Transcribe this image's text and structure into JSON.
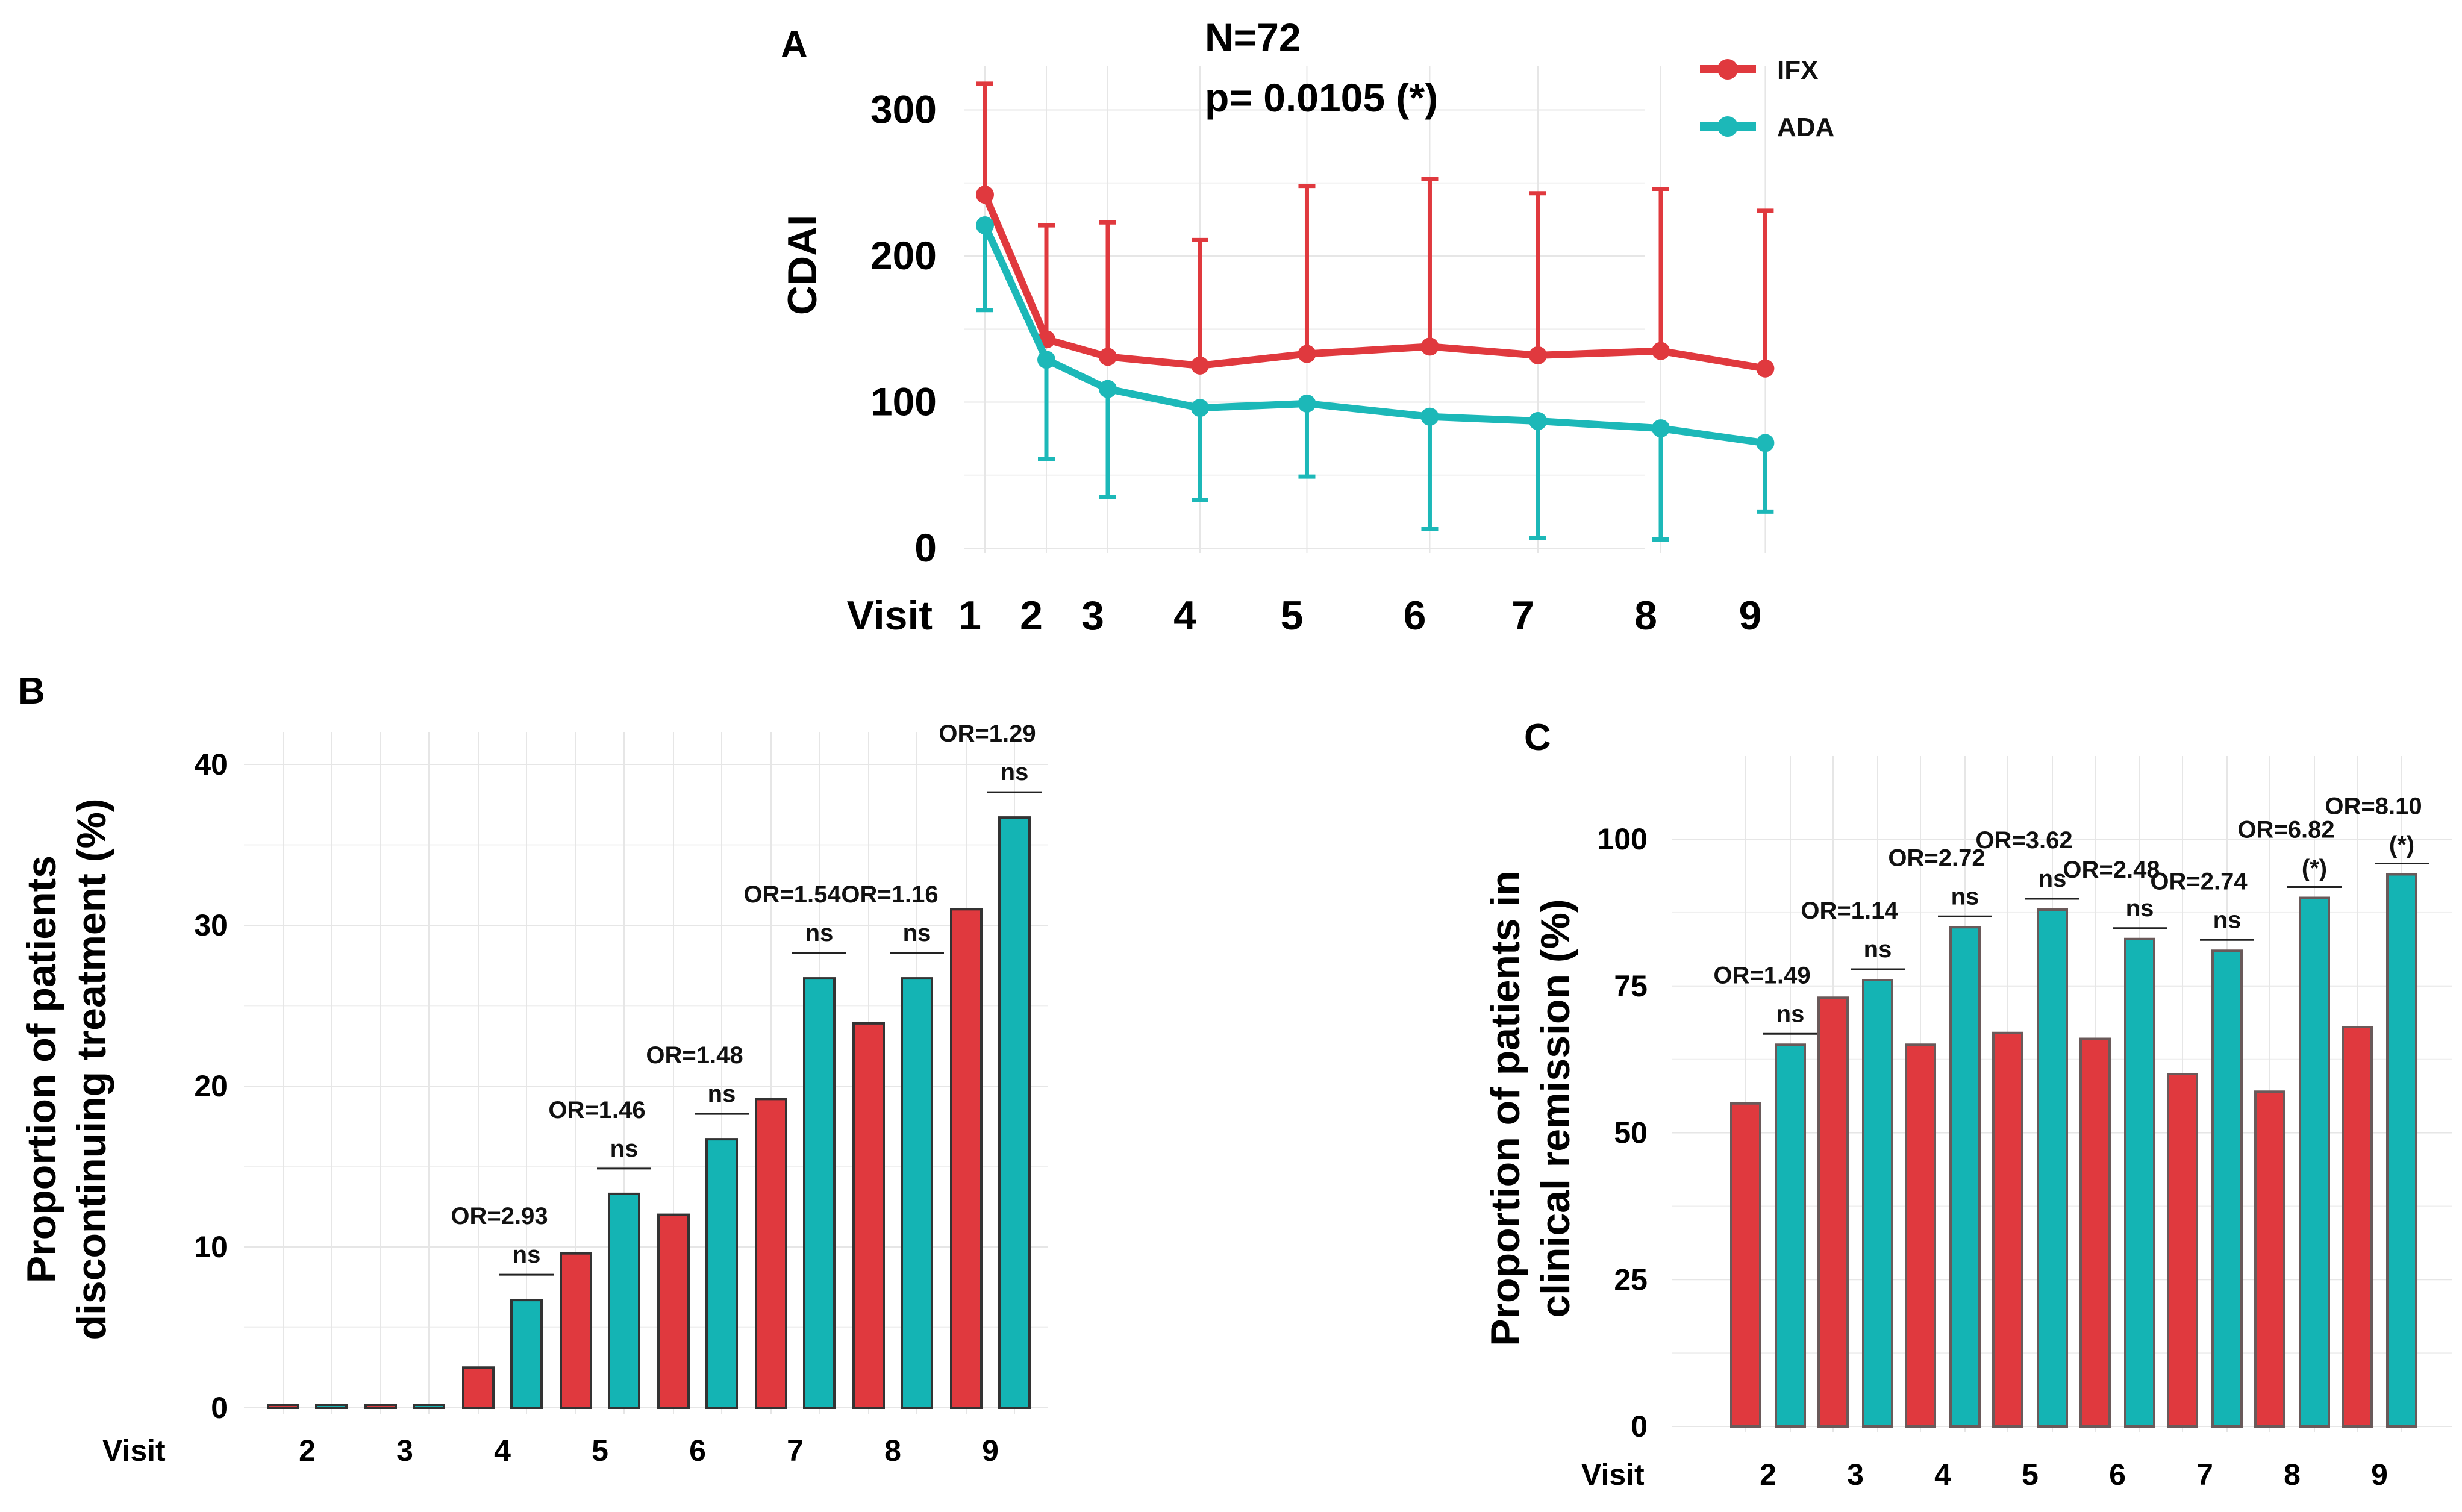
{
  "colors": {
    "ifx": "#e0393e",
    "ada": "#1cb8b8",
    "ifx_bar": "#e0393e",
    "ada_bar": "#14b4b4",
    "bar_edge": "#333333"
  },
  "legend": {
    "items": [
      {
        "label": "IFX",
        "series": "ifx"
      },
      {
        "label": "ADA",
        "series": "ada"
      }
    ]
  },
  "chart_data": [
    {
      "panel": "A",
      "type": "line",
      "ylabel": "CDAI",
      "xlabel": "Visit",
      "annotation": {
        "n": "N=72",
        "p": "p= 0.0105 (*)"
      },
      "x": [
        1,
        2,
        3,
        4,
        5,
        6,
        7,
        8,
        9
      ],
      "x_positions": [
        1,
        1.5,
        2,
        2.75,
        3.62,
        4.62,
        5.5,
        6.5,
        7.35
      ],
      "ylim": [
        0,
        330
      ],
      "yticks": [
        0,
        100,
        200,
        300
      ],
      "series": [
        {
          "name": "IFX",
          "key": "ifx",
          "values": [
            242,
            143,
            131,
            125,
            133,
            138,
            132,
            135,
            123
          ],
          "err_upper": [
            318,
            221,
            223,
            211,
            248,
            253,
            243,
            246,
            231
          ]
        },
        {
          "name": "ADA",
          "key": "ada",
          "values": [
            221,
            129,
            109,
            96,
            99,
            90,
            87,
            82,
            72
          ],
          "err_lower": [
            163,
            61,
            35,
            33,
            49,
            13,
            7,
            6,
            25
          ]
        }
      ]
    },
    {
      "panel": "B",
      "type": "bar",
      "ylabel_lines": [
        "Proportion of patients",
        "discontinuing treatment (%)"
      ],
      "xlabel": "Visit",
      "categories": [
        "2",
        "3",
        "4",
        "5",
        "6",
        "7",
        "8",
        "9"
      ],
      "ylim": [
        0,
        44
      ],
      "yticks": [
        0,
        10,
        20,
        30,
        40
      ],
      "series": [
        {
          "name": "IFX",
          "key": "ifx",
          "values": [
            0,
            0,
            2.5,
            9.6,
            12,
            19.2,
            23.9,
            31
          ]
        },
        {
          "name": "ADA",
          "key": "ada",
          "values": [
            0,
            0,
            6.7,
            13.3,
            16.7,
            26.7,
            26.7,
            36.7
          ]
        }
      ],
      "annotations": [
        null,
        null,
        {
          "or": "OR=2.93",
          "sig": "ns"
        },
        {
          "or": "OR=1.46",
          "sig": "ns"
        },
        {
          "or": "OR=1.48",
          "sig": "ns"
        },
        {
          "or": "OR=1.54",
          "sig": "ns"
        },
        {
          "or": "OR=1.16",
          "sig": "ns"
        },
        {
          "or": "OR=1.29",
          "sig": "ns"
        }
      ]
    },
    {
      "panel": "C",
      "type": "bar",
      "ylabel_lines": [
        "Proportion of patients in",
        "clinical remission (%)"
      ],
      "xlabel": "Visit",
      "categories": [
        "2",
        "3",
        "4",
        "5",
        "6",
        "7",
        "8",
        "9"
      ],
      "ylim": [
        0,
        108
      ],
      "yticks": [
        0,
        25,
        50,
        75,
        100
      ],
      "series": [
        {
          "name": "IFX",
          "key": "ifx",
          "values": [
            55,
            73,
            65,
            67,
            66,
            60,
            57,
            68
          ]
        },
        {
          "name": "ADA",
          "key": "ada",
          "values": [
            65,
            76,
            85,
            88,
            83,
            81,
            90,
            94
          ]
        }
      ],
      "annotations": [
        {
          "or": "OR=1.49",
          "sig": "ns"
        },
        {
          "or": "OR=1.14",
          "sig": "ns"
        },
        {
          "or": "OR=2.72",
          "sig": "ns"
        },
        {
          "or": "OR=3.62",
          "sig": "ns"
        },
        {
          "or": "OR=2.48",
          "sig": "ns"
        },
        {
          "or": "OR=2.74",
          "sig": "ns"
        },
        {
          "or": "OR=6.82",
          "sig": "(*)"
        },
        {
          "or": "OR=8.10",
          "sig": "(*)"
        }
      ]
    }
  ]
}
